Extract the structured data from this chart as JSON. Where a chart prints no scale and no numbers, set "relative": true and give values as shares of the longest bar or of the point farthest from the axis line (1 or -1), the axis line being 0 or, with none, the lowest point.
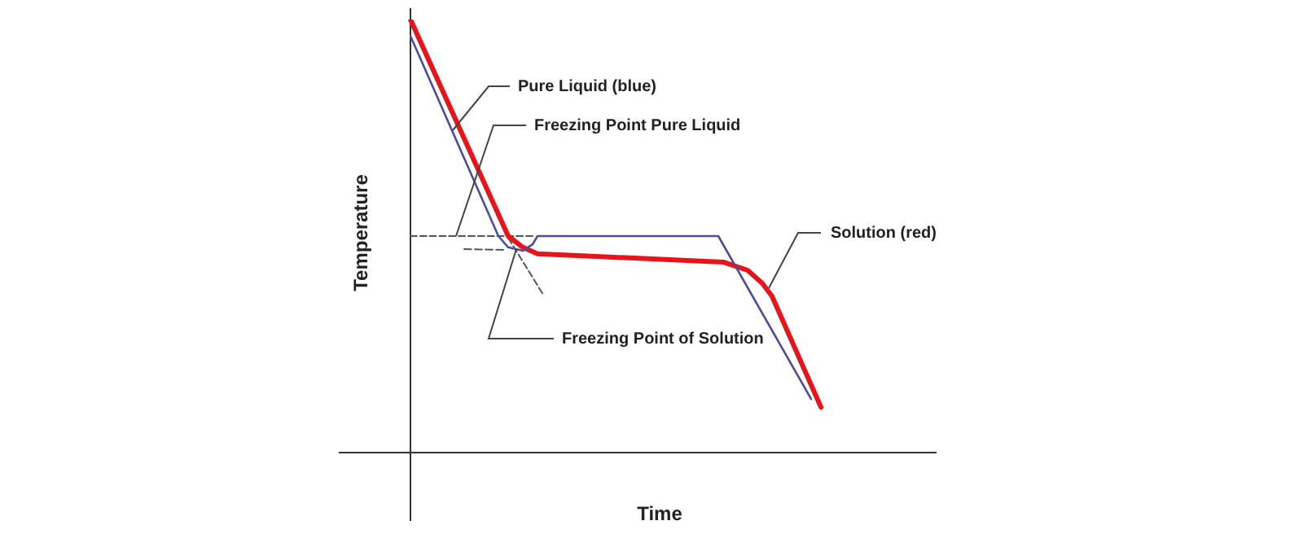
{
  "chart_data": {
    "type": "line",
    "relative": true,
    "xlabel": "Time",
    "ylabel": "Temperature",
    "legend": false,
    "grid": false,
    "tick_labels": false,
    "marker": "none",
    "line_style": "solid",
    "categories": [
      null,
      null,
      null,
      null,
      null,
      null,
      null,
      null,
      null,
      null,
      null,
      null,
      null,
      null,
      null,
      null,
      null,
      null,
      null,
      null,
      null,
      null,
      null,
      null,
      null,
      null,
      null,
      null,
      null,
      null,
      null,
      null,
      null,
      null,
      null,
      null,
      null,
      null,
      null,
      null,
      null,
      null,
      null,
      null,
      null,
      null,
      null,
      null,
      null,
      null,
      null,
      null,
      null,
      null,
      null,
      null,
      null,
      null,
      null,
      null,
      null,
      null,
      null,
      null,
      null,
      null,
      null,
      null,
      null,
      null,
      null,
      null,
      null,
      null,
      null,
      null,
      null,
      null,
      null,
      null,
      null,
      null,
      null,
      null,
      null,
      null
    ],
    "series": [
      {
        "color": "#4d4d9e",
        "values": [
          0.962,
          null,
          null,
          null,
          null,
          null,
          null,
          null,
          null,
          null,
          null,
          null,
          null,
          null,
          null,
          null,
          null,
          null,
          0.5,
          null,
          0.474,
          null,
          null,
          0.466,
          null,
          0.481,
          0.5,
          null,
          null,
          null,
          null,
          null,
          null,
          null,
          null,
          null,
          null,
          null,
          null,
          null,
          null,
          null,
          null,
          null,
          null,
          null,
          null,
          null,
          null,
          null,
          null,
          null,
          null,
          null,
          null,
          null,
          null,
          null,
          null,
          null,
          null,
          null,
          null,
          0.5,
          null,
          null,
          null,
          null,
          null,
          null,
          null,
          null,
          null,
          null,
          null,
          null,
          null,
          null,
          null,
          null,
          null,
          null,
          0.124,
          null,
          null,
          null
        ]
      },
      {
        "color": "#e8141c",
        "values": [
          1,
          null,
          null,
          null,
          null,
          null,
          null,
          null,
          null,
          null,
          null,
          null,
          null,
          null,
          null,
          null,
          null,
          null,
          null,
          null,
          0.5,
          null,
          null,
          0.474,
          null,
          null,
          0.459,
          null,
          null,
          null,
          null,
          null,
          null,
          null,
          null,
          null,
          null,
          null,
          null,
          null,
          null,
          null,
          null,
          null,
          null,
          null,
          null,
          null,
          null,
          null,
          null,
          null,
          null,
          null,
          null,
          null,
          null,
          null,
          null,
          null,
          null,
          null,
          null,
          null,
          0.44,
          null,
          null,
          null,
          null,
          0.421,
          null,
          null,
          0.391,
          null,
          0.361,
          null,
          null,
          null,
          null,
          null,
          null,
          null,
          null,
          null,
          0.105,
          null
        ]
      },
      {
        "color": "#555555",
        "line_style": "dashed",
        "values": [
          0.5,
          null,
          null,
          null,
          null,
          null,
          null,
          null,
          null,
          null,
          null,
          null,
          null,
          null,
          null,
          null,
          null,
          null,
          null,
          null,
          null,
          null,
          null,
          null,
          null,
          0.5,
          null,
          null,
          null,
          null,
          null,
          null,
          null,
          null,
          null,
          null,
          null,
          null,
          null,
          null,
          null,
          null,
          null,
          null,
          null,
          null,
          null,
          null,
          null,
          null,
          null,
          null,
          null,
          null,
          null,
          null,
          null,
          null,
          null,
          null,
          null,
          null,
          null,
          null,
          null,
          null,
          null,
          null,
          null,
          null,
          null,
          null,
          null,
          null,
          null,
          null,
          null,
          null,
          null,
          null,
          null,
          null,
          null,
          null,
          null,
          null
        ]
      },
      {
        "color": "#555555",
        "line_style": "dashed",
        "values": [
          null,
          null,
          null,
          null,
          null,
          null,
          null,
          null,
          null,
          null,
          null,
          0.47,
          null,
          null,
          null,
          null,
          null,
          null,
          null,
          0.468,
          null,
          null,
          null,
          null,
          null,
          null,
          null,
          null,
          null,
          null,
          null,
          null,
          null,
          null,
          null,
          null,
          null,
          null,
          null,
          null,
          null,
          null,
          null,
          null,
          null,
          null,
          null,
          null,
          null,
          null,
          null,
          null,
          null,
          null,
          null,
          null,
          null,
          null,
          null,
          null,
          null,
          null,
          null,
          null,
          null,
          null,
          null,
          null,
          null,
          null,
          null,
          null,
          null,
          null,
          null,
          null,
          null,
          null,
          null,
          null,
          null,
          null,
          null,
          null,
          null,
          null
        ]
      },
      {
        "color": "#555555",
        "line_style": "dashed",
        "values": [
          null,
          null,
          null,
          null,
          null,
          null,
          null,
          null,
          null,
          null,
          null,
          null,
          null,
          null,
          null,
          null,
          null,
          null,
          null,
          null,
          0.496,
          null,
          null,
          null,
          null,
          null,
          null,
          0.368,
          null,
          null,
          null,
          null,
          null,
          null,
          null,
          null,
          null,
          null,
          null,
          null,
          null,
          null,
          null,
          null,
          null,
          null,
          null,
          null,
          null,
          null,
          null,
          null,
          null,
          null,
          null,
          null,
          null,
          null,
          null,
          null,
          null,
          null,
          null,
          null,
          null,
          null,
          null,
          null,
          null,
          null,
          null,
          null,
          null,
          null,
          null,
          null,
          null,
          null,
          null,
          null,
          null,
          null,
          null,
          null,
          null,
          null
        ]
      }
    ],
    "annotations": [
      "Pure Liquid (blue)",
      "Freezing Point Pure Liquid",
      "Freezing Point of Solution",
      "Solution (red)"
    ]
  }
}
